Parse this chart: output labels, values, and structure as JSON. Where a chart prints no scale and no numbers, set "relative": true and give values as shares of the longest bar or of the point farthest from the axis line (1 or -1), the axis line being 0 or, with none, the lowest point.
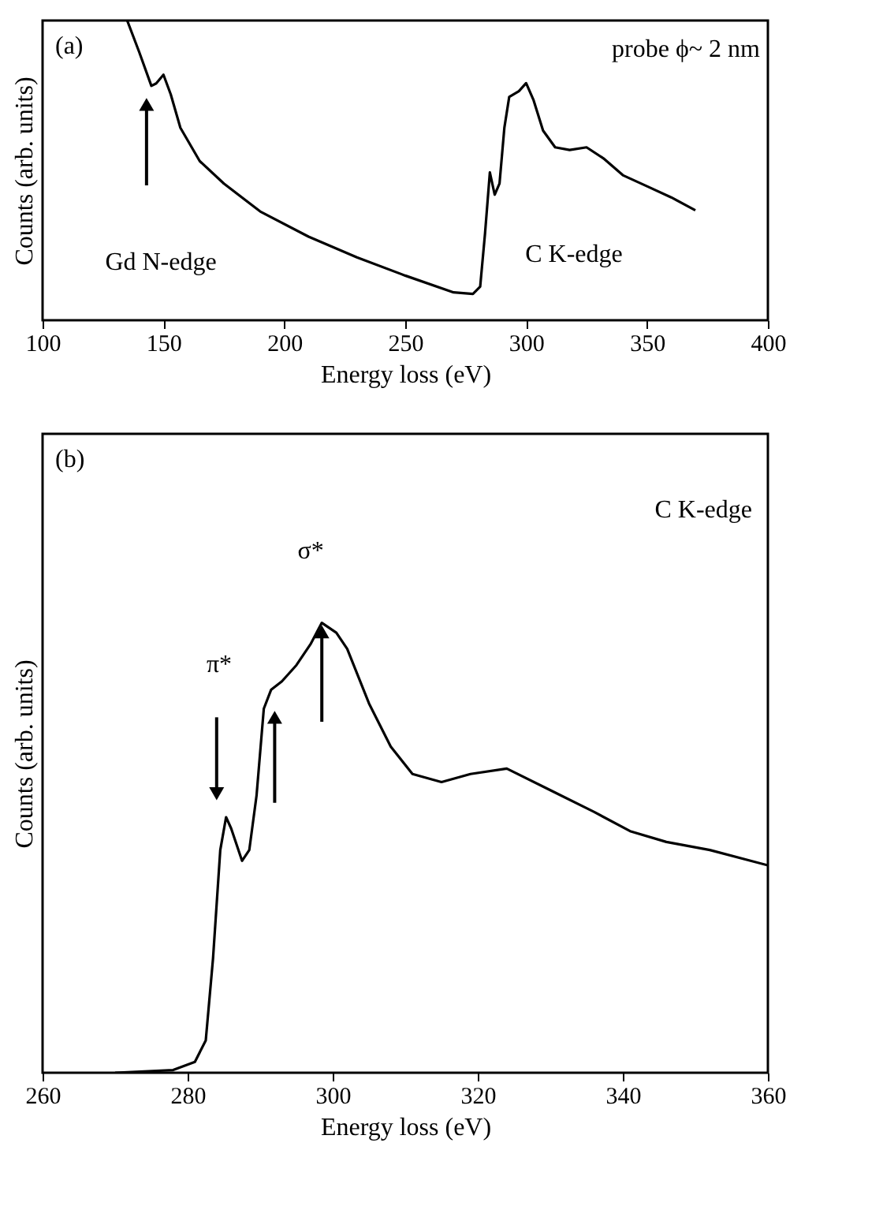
{
  "chart_data": [
    {
      "type": "line",
      "relative": true,
      "xlabel": "Energy loss (eV)",
      "ylabel": "Counts (arb. units)",
      "xlim": [
        100,
        400
      ],
      "xticks": [
        100,
        150,
        200,
        250,
        300,
        350,
        400
      ],
      "grid": false,
      "tick_labels": "x",
      "marker": "none",
      "line_style": "solid",
      "annotations": [
        "(a)",
        "probe ϕ~ 2 nm",
        "Gd  N-edge",
        "C  K-edge"
      ],
      "series": [
        {
          "color": "#000000",
          "x": [
            135,
            140,
            145,
            147,
            150,
            153,
            157,
            165,
            175,
            190,
            210,
            230,
            250,
            270,
            278,
            281,
            283,
            285,
            287,
            289,
            291,
            293,
            297,
            300,
            303,
            307,
            312,
            318,
            325,
            332,
            340,
            350,
            360,
            370
          ],
          "values": [
            1.0,
            0.894,
            0.782,
            0.79,
            0.819,
            0.754,
            0.642,
            0.531,
            0.456,
            0.363,
            0.279,
            0.21,
            0.149,
            0.093,
            0.088,
            0.112,
            0.289,
            0.493,
            0.419,
            0.456,
            0.642,
            0.745,
            0.764,
            0.791,
            0.736,
            0.633,
            0.577,
            0.568,
            0.577,
            0.54,
            0.484,
            0.447,
            0.41,
            0.367
          ]
        }
      ]
    },
    {
      "type": "line",
      "relative": true,
      "xlabel": "Energy loss (eV)",
      "ylabel": "Counts (arb. units)",
      "xlim": [
        260,
        360
      ],
      "xticks": [
        260,
        280,
        300,
        320,
        340,
        360
      ],
      "grid": false,
      "tick_labels": "x",
      "marker": "none",
      "line_style": "solid",
      "annotations": [
        "(b)",
        "C  K-edge",
        "π*",
        "σ*"
      ],
      "series": [
        {
          "color": "#000000",
          "x": [
            270,
            278,
            281,
            282.5,
            283.5,
            284.5,
            285.3,
            286,
            287.5,
            288.5,
            289.5,
            290.5,
            291.5,
            293,
            295,
            297,
            298.5,
            300.5,
            302,
            305,
            308,
            311,
            315,
            319,
            324,
            330,
            336,
            341,
            346,
            352,
            360
          ],
          "values": [
            0,
            0.006,
            0.024,
            0.072,
            0.254,
            0.495,
            0.568,
            0.543,
            0.471,
            0.495,
            0.616,
            0.809,
            0.851,
            0.87,
            0.906,
            0.954,
            1.0,
            0.978,
            0.942,
            0.821,
            0.725,
            0.664,
            0.646,
            0.664,
            0.676,
            0.628,
            0.58,
            0.537,
            0.513,
            0.495,
            0.461
          ]
        }
      ]
    }
  ]
}
